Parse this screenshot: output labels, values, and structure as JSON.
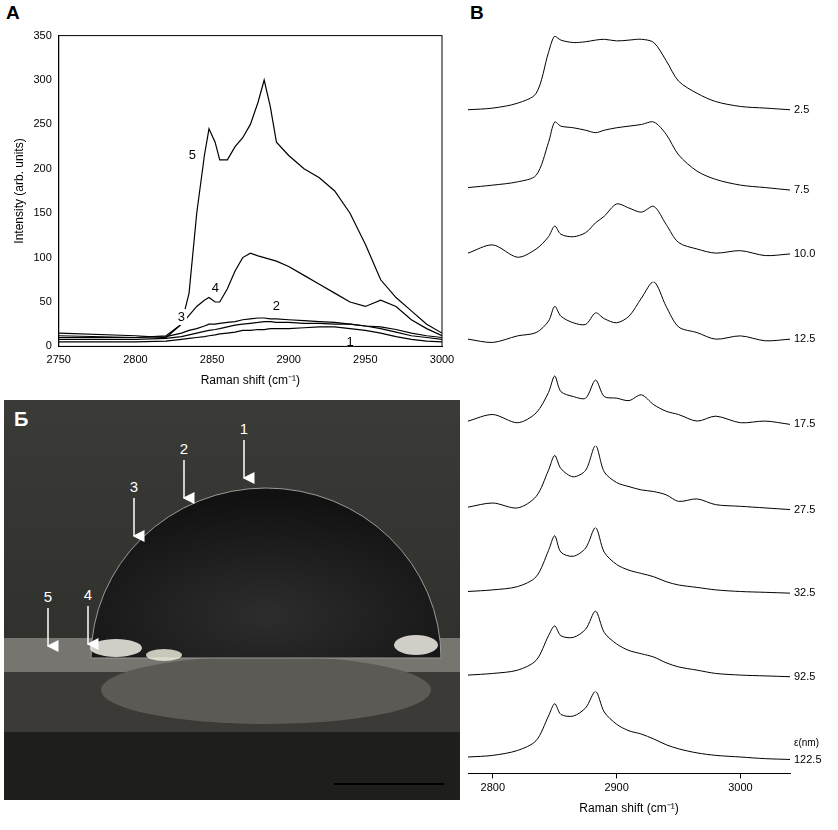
{
  "chart_data": [
    {
      "panel": "A",
      "type": "line",
      "x_label": "Raman shift (cm⁻¹)",
      "y_label": "Intensity (arb. units)",
      "x": [
        2750,
        2800,
        2820,
        2830,
        2835,
        2840,
        2845,
        2848,
        2852,
        2855,
        2860,
        2865,
        2870,
        2875,
        2880,
        2884,
        2888,
        2892,
        2900,
        2910,
        2920,
        2930,
        2940,
        2950,
        2960,
        2970,
        2980,
        2990,
        3000
      ],
      "series": [
        {
          "name": "1",
          "color": "#000000",
          "values": [
            5,
            5,
            6,
            8,
            9,
            10,
            11,
            12,
            13,
            14,
            15,
            16,
            18,
            18,
            19,
            19,
            20,
            20,
            20,
            21,
            22,
            22,
            20,
            18,
            15,
            11,
            8,
            6,
            5
          ]
        },
        {
          "name": "2",
          "color": "#000000",
          "values": [
            8,
            8,
            9,
            11,
            13,
            15,
            17,
            18,
            19,
            20,
            22,
            24,
            25,
            26,
            27,
            28,
            28,
            27,
            27,
            26,
            26,
            25,
            25,
            23,
            20,
            16,
            12,
            10,
            8
          ]
        },
        {
          "name": "3",
          "color": "#000000",
          "values": [
            10,
            10,
            11,
            15,
            18,
            20,
            23,
            25,
            25,
            26,
            27,
            28,
            30,
            31,
            32,
            32,
            31,
            31,
            30,
            29,
            28,
            27,
            25,
            23,
            22,
            19,
            15,
            12,
            10
          ]
        },
        {
          "name": "4",
          "color": "#000000",
          "values": [
            12,
            10,
            12,
            25,
            35,
            45,
            52,
            55,
            50,
            50,
            65,
            85,
            100,
            105,
            102,
            100,
            98,
            96,
            90,
            80,
            70,
            60,
            50,
            45,
            52,
            45,
            30,
            20,
            12
          ]
        },
        {
          "name": "5",
          "color": "#000000",
          "values": [
            15,
            12,
            10,
            25,
            60,
            150,
            215,
            245,
            230,
            210,
            210,
            225,
            235,
            250,
            275,
            300,
            270,
            230,
            215,
            200,
            190,
            175,
            150,
            115,
            75,
            55,
            40,
            25,
            15
          ]
        }
      ],
      "xlim": [
        2750,
        3000
      ],
      "xticks": [
        2750,
        2800,
        2850,
        2900,
        2950,
        3000
      ],
      "ylim": [
        0,
        350
      ],
      "yticks": [
        0,
        50,
        100,
        150,
        200,
        250,
        300,
        350
      ],
      "grid": false
    },
    {
      "panel": "B",
      "type": "line",
      "x_label": "Raman shift (cm⁻¹)",
      "annotation": "ε(nm)",
      "x": [
        2780,
        2800,
        2820,
        2835,
        2845,
        2850,
        2855,
        2865,
        2875,
        2883,
        2890,
        2900,
        2910,
        2920,
        2930,
        2940,
        2950,
        2965,
        2980,
        3000,
        3020,
        3040
      ],
      "series": [
        {
          "name": "122.5",
          "color": "#000000",
          "values": [
            20,
            22,
            28,
            40,
            70,
            85,
            72,
            70,
            80,
            100,
            75,
            60,
            52,
            48,
            42,
            35,
            30,
            25,
            22,
            20,
            18,
            17
          ]
        },
        {
          "name": "92.5",
          "color": "#000000",
          "values": [
            20,
            22,
            26,
            38,
            68,
            80,
            68,
            66,
            76,
            98,
            72,
            58,
            50,
            46,
            42,
            35,
            30,
            26,
            22,
            20,
            19,
            18
          ]
        },
        {
          "name": "32.5",
          "color": "#000000",
          "values": [
            22,
            24,
            28,
            40,
            72,
            90,
            70,
            65,
            75,
            100,
            70,
            55,
            48,
            44,
            40,
            34,
            30,
            27,
            24,
            22,
            21,
            20
          ]
        },
        {
          "name": "27.5",
          "color": "#000000",
          "values": [
            25,
            30,
            24,
            38,
            70,
            88,
            72,
            62,
            70,
            100,
            68,
            55,
            50,
            46,
            44,
            40,
            32,
            35,
            28,
            26,
            24,
            22
          ]
        },
        {
          "name": "17.5",
          "color": "#000000",
          "values": [
            30,
            38,
            28,
            40,
            65,
            85,
            66,
            60,
            58,
            80,
            60,
            58,
            55,
            62,
            50,
            42,
            38,
            30,
            36,
            28,
            30,
            26
          ]
        },
        {
          "name": "12.5",
          "color": "#000000",
          "values": [
            30,
            26,
            34,
            38,
            52,
            70,
            58,
            50,
            48,
            62,
            55,
            50,
            58,
            80,
            100,
            70,
            45,
            38,
            30,
            34,
            28,
            30
          ]
        },
        {
          "name": "10.0",
          "color": "#000000",
          "values": [
            35,
            45,
            30,
            40,
            55,
            68,
            58,
            55,
            60,
            72,
            80,
            95,
            90,
            85,
            92,
            70,
            48,
            40,
            35,
            38,
            32,
            34
          ]
        },
        {
          "name": "7.5",
          "color": "#000000",
          "values": [
            15,
            18,
            22,
            30,
            70,
            95,
            90,
            88,
            85,
            82,
            85,
            88,
            90,
            92,
            95,
            80,
            55,
            35,
            25,
            18,
            15,
            12
          ]
        },
        {
          "name": "2.5",
          "color": "#000000",
          "values": [
            10,
            12,
            18,
            30,
            80,
            100,
            95,
            92,
            93,
            95,
            96,
            94,
            95,
            96,
            92,
            70,
            45,
            30,
            20,
            14,
            12,
            10
          ]
        }
      ],
      "xlim": [
        2780,
        3040
      ],
      "xticks": [
        2800,
        2900,
        3000
      ],
      "ylim": [
        0,
        100
      ],
      "tick_labels": "x",
      "grid": false
    }
  ],
  "photo": {
    "panel": "Б",
    "markers": [
      "1",
      "2",
      "3",
      "4",
      "5"
    ]
  }
}
